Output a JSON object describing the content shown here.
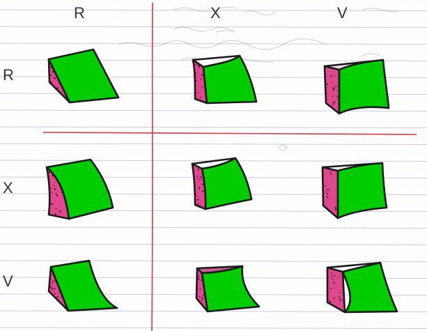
{
  "column_headers": [
    "R",
    "X",
    "V"
  ],
  "row_headers": [
    "R",
    "X",
    "V"
  ],
  "colors": {
    "face_green": "#00cc00",
    "side_pink": "#e0488e",
    "outline": "#1a1a1a",
    "grid_line": "#d23a4a",
    "ruled_line": "#c9ccd6",
    "speckle": "#3a1a2a"
  }
}
